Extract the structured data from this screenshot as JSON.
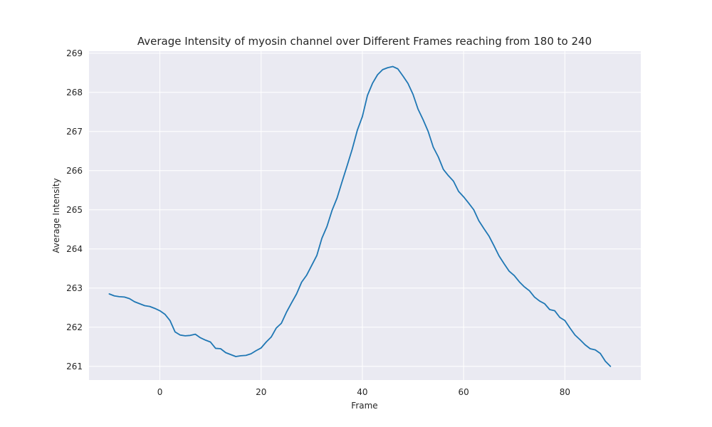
{
  "chart_data": {
    "type": "line",
    "title": "Average Intensity of myosin channel over Different Frames reaching from 180 to 240",
    "xlabel": "Frame",
    "ylabel": "Average Intensity",
    "xlim": [
      -14,
      95
    ],
    "ylim": [
      260.65,
      269.05
    ],
    "xticks": [
      0,
      20,
      40,
      60,
      80
    ],
    "yticks": [
      261,
      262,
      263,
      264,
      265,
      266,
      267,
      268,
      269
    ],
    "grid": true,
    "background": "#eaeaf2",
    "line_color": "#1f77b4",
    "series": [
      {
        "x": [
          -10,
          -9,
          -8,
          -7,
          -6,
          -5,
          -4,
          -3,
          -2,
          -1,
          0,
          1,
          2,
          3,
          4,
          5,
          6,
          7,
          8,
          9,
          10,
          11,
          12,
          13,
          14,
          15,
          16,
          17,
          18,
          19,
          20,
          21,
          22,
          23,
          24,
          25,
          26,
          27,
          28,
          29,
          30,
          31,
          32,
          33,
          34,
          35,
          36,
          37,
          38,
          39,
          40,
          41,
          42,
          43,
          44,
          45,
          46,
          47,
          48,
          49,
          50,
          51,
          52,
          53,
          54,
          55,
          56,
          57,
          58,
          59,
          60,
          61,
          62,
          63,
          64,
          65,
          66,
          67,
          68,
          69,
          70,
          71,
          72,
          73,
          74,
          75,
          76,
          77,
          78,
          79,
          80,
          81,
          82,
          83,
          84,
          85,
          86,
          87,
          88,
          89
        ],
        "y": [
          262.85,
          262.8,
          262.78,
          262.77,
          262.73,
          262.65,
          262.6,
          262.55,
          262.53,
          262.48,
          262.42,
          262.33,
          262.17,
          261.88,
          261.8,
          261.78,
          261.79,
          261.82,
          261.73,
          261.67,
          261.62,
          261.46,
          261.45,
          261.35,
          261.3,
          261.25,
          261.27,
          261.28,
          261.32,
          261.4,
          261.47,
          261.62,
          261.75,
          261.98,
          262.1,
          262.38,
          262.62,
          262.85,
          263.15,
          263.33,
          263.58,
          263.83,
          264.27,
          264.57,
          264.98,
          265.3,
          265.72,
          266.13,
          266.55,
          267.03,
          267.38,
          267.92,
          268.23,
          268.45,
          268.58,
          268.63,
          268.66,
          268.6,
          268.42,
          268.23,
          267.95,
          267.57,
          267.3,
          267.0,
          266.6,
          266.35,
          266.03,
          265.87,
          265.73,
          265.47,
          265.33,
          265.17,
          265.0,
          264.72,
          264.52,
          264.33,
          264.08,
          263.82,
          263.62,
          263.43,
          263.32,
          263.16,
          263.03,
          262.93,
          262.77,
          262.67,
          262.6,
          262.45,
          262.42,
          262.25,
          262.17,
          261.98,
          261.8,
          261.68,
          261.55,
          261.45,
          261.42,
          261.33,
          261.13,
          261.0
        ]
      }
    ]
  }
}
